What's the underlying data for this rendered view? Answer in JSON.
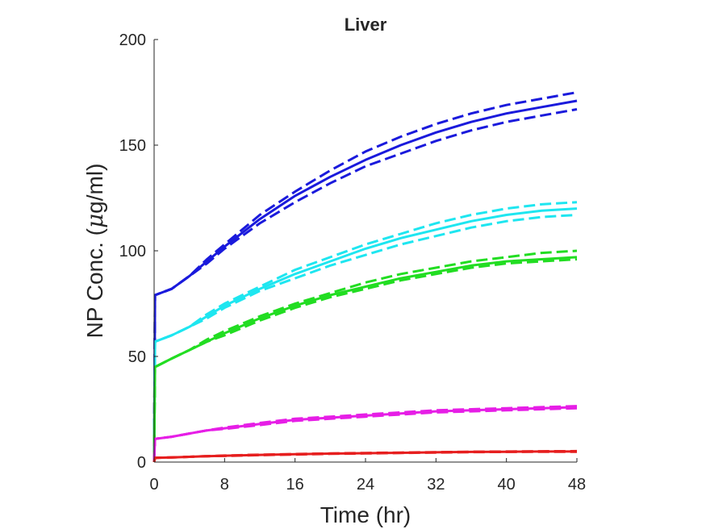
{
  "chart_data": {
    "type": "line",
    "title": "Liver",
    "xlabel": "Time (hr)",
    "ylabel_prefix": "NP Conc. (",
    "ylabel_mu": "μ",
    "ylabel_suffix": "g/ml)",
    "xlim": [
      0,
      48
    ],
    "ylim": [
      0,
      200
    ],
    "xticks": [
      0,
      8,
      16,
      24,
      32,
      40,
      48
    ],
    "yticks": [
      0,
      50,
      100,
      150,
      200
    ],
    "grid": false,
    "legend": "none",
    "x": [
      0,
      0.1,
      2,
      4,
      6,
      8,
      12,
      16,
      20,
      24,
      28,
      32,
      36,
      40,
      44,
      48
    ],
    "series": [
      {
        "color": "#1a1adc",
        "mean": [
          0,
          79,
          82,
          88,
          95,
          102,
          115,
          126,
          135,
          143,
          150,
          156,
          161,
          165,
          168,
          171
        ],
        "upper": [
          0,
          79,
          82,
          88,
          96,
          103,
          117,
          128,
          138,
          147,
          154,
          160,
          165,
          169,
          172,
          175
        ],
        "lower": [
          0,
          79,
          82,
          88,
          94,
          101,
          113,
          123,
          132,
          140,
          146,
          152,
          157,
          161,
          164,
          167
        ]
      },
      {
        "color": "#1ee6f0",
        "mean": [
          0,
          57,
          60,
          64,
          69,
          74,
          82,
          89,
          95,
          101,
          106,
          110,
          114,
          117,
          119,
          120
        ],
        "upper": [
          0,
          57,
          60,
          64,
          70,
          75,
          83,
          91,
          97,
          103,
          108,
          113,
          117,
          120,
          122,
          123
        ],
        "lower": [
          0,
          57,
          60,
          64,
          68,
          73,
          81,
          87,
          93,
          98,
          103,
          107,
          111,
          114,
          116,
          117
        ]
      },
      {
        "color": "#22dd22",
        "mean": [
          0,
          45,
          49,
          53,
          57,
          61,
          68,
          74,
          79,
          83,
          87,
          90,
          93,
          95,
          96,
          97
        ],
        "upper": [
          0,
          45,
          49,
          53,
          58,
          62,
          69,
          75,
          80,
          85,
          89,
          92,
          95,
          97,
          99,
          100
        ],
        "lower": [
          0,
          45,
          49,
          53,
          57,
          60,
          67,
          73,
          78,
          82,
          86,
          89,
          92,
          94,
          95,
          96
        ]
      },
      {
        "color": "#e61ee6",
        "mean": [
          0,
          11,
          12,
          13.5,
          15,
          16,
          18,
          20,
          21,
          22,
          23,
          24,
          24.5,
          25,
          25.5,
          26
        ],
        "upper": [
          0,
          11,
          12,
          13.5,
          15,
          16.3,
          18.5,
          20.5,
          21.5,
          22.5,
          23.5,
          24.5,
          25,
          25.5,
          26,
          26.5
        ],
        "lower": [
          0,
          11,
          12,
          13.5,
          15,
          15.7,
          17.5,
          19.5,
          20.5,
          21.5,
          22.5,
          23.5,
          24,
          24.5,
          25,
          25.5
        ]
      },
      {
        "color": "#e61e1e",
        "mean": [
          0,
          2,
          2.2,
          2.5,
          2.8,
          3,
          3.4,
          3.7,
          4,
          4.2,
          4.4,
          4.6,
          4.8,
          4.9,
          5,
          5
        ],
        "upper": [
          0,
          2,
          2.2,
          2.5,
          2.8,
          3.1,
          3.5,
          3.8,
          4.1,
          4.3,
          4.5,
          4.7,
          4.9,
          5,
          5.1,
          5.2
        ],
        "lower": [
          0,
          2,
          2.2,
          2.5,
          2.8,
          2.9,
          3.3,
          3.6,
          3.9,
          4.1,
          4.3,
          4.5,
          4.7,
          4.8,
          4.9,
          4.9
        ]
      }
    ]
  }
}
